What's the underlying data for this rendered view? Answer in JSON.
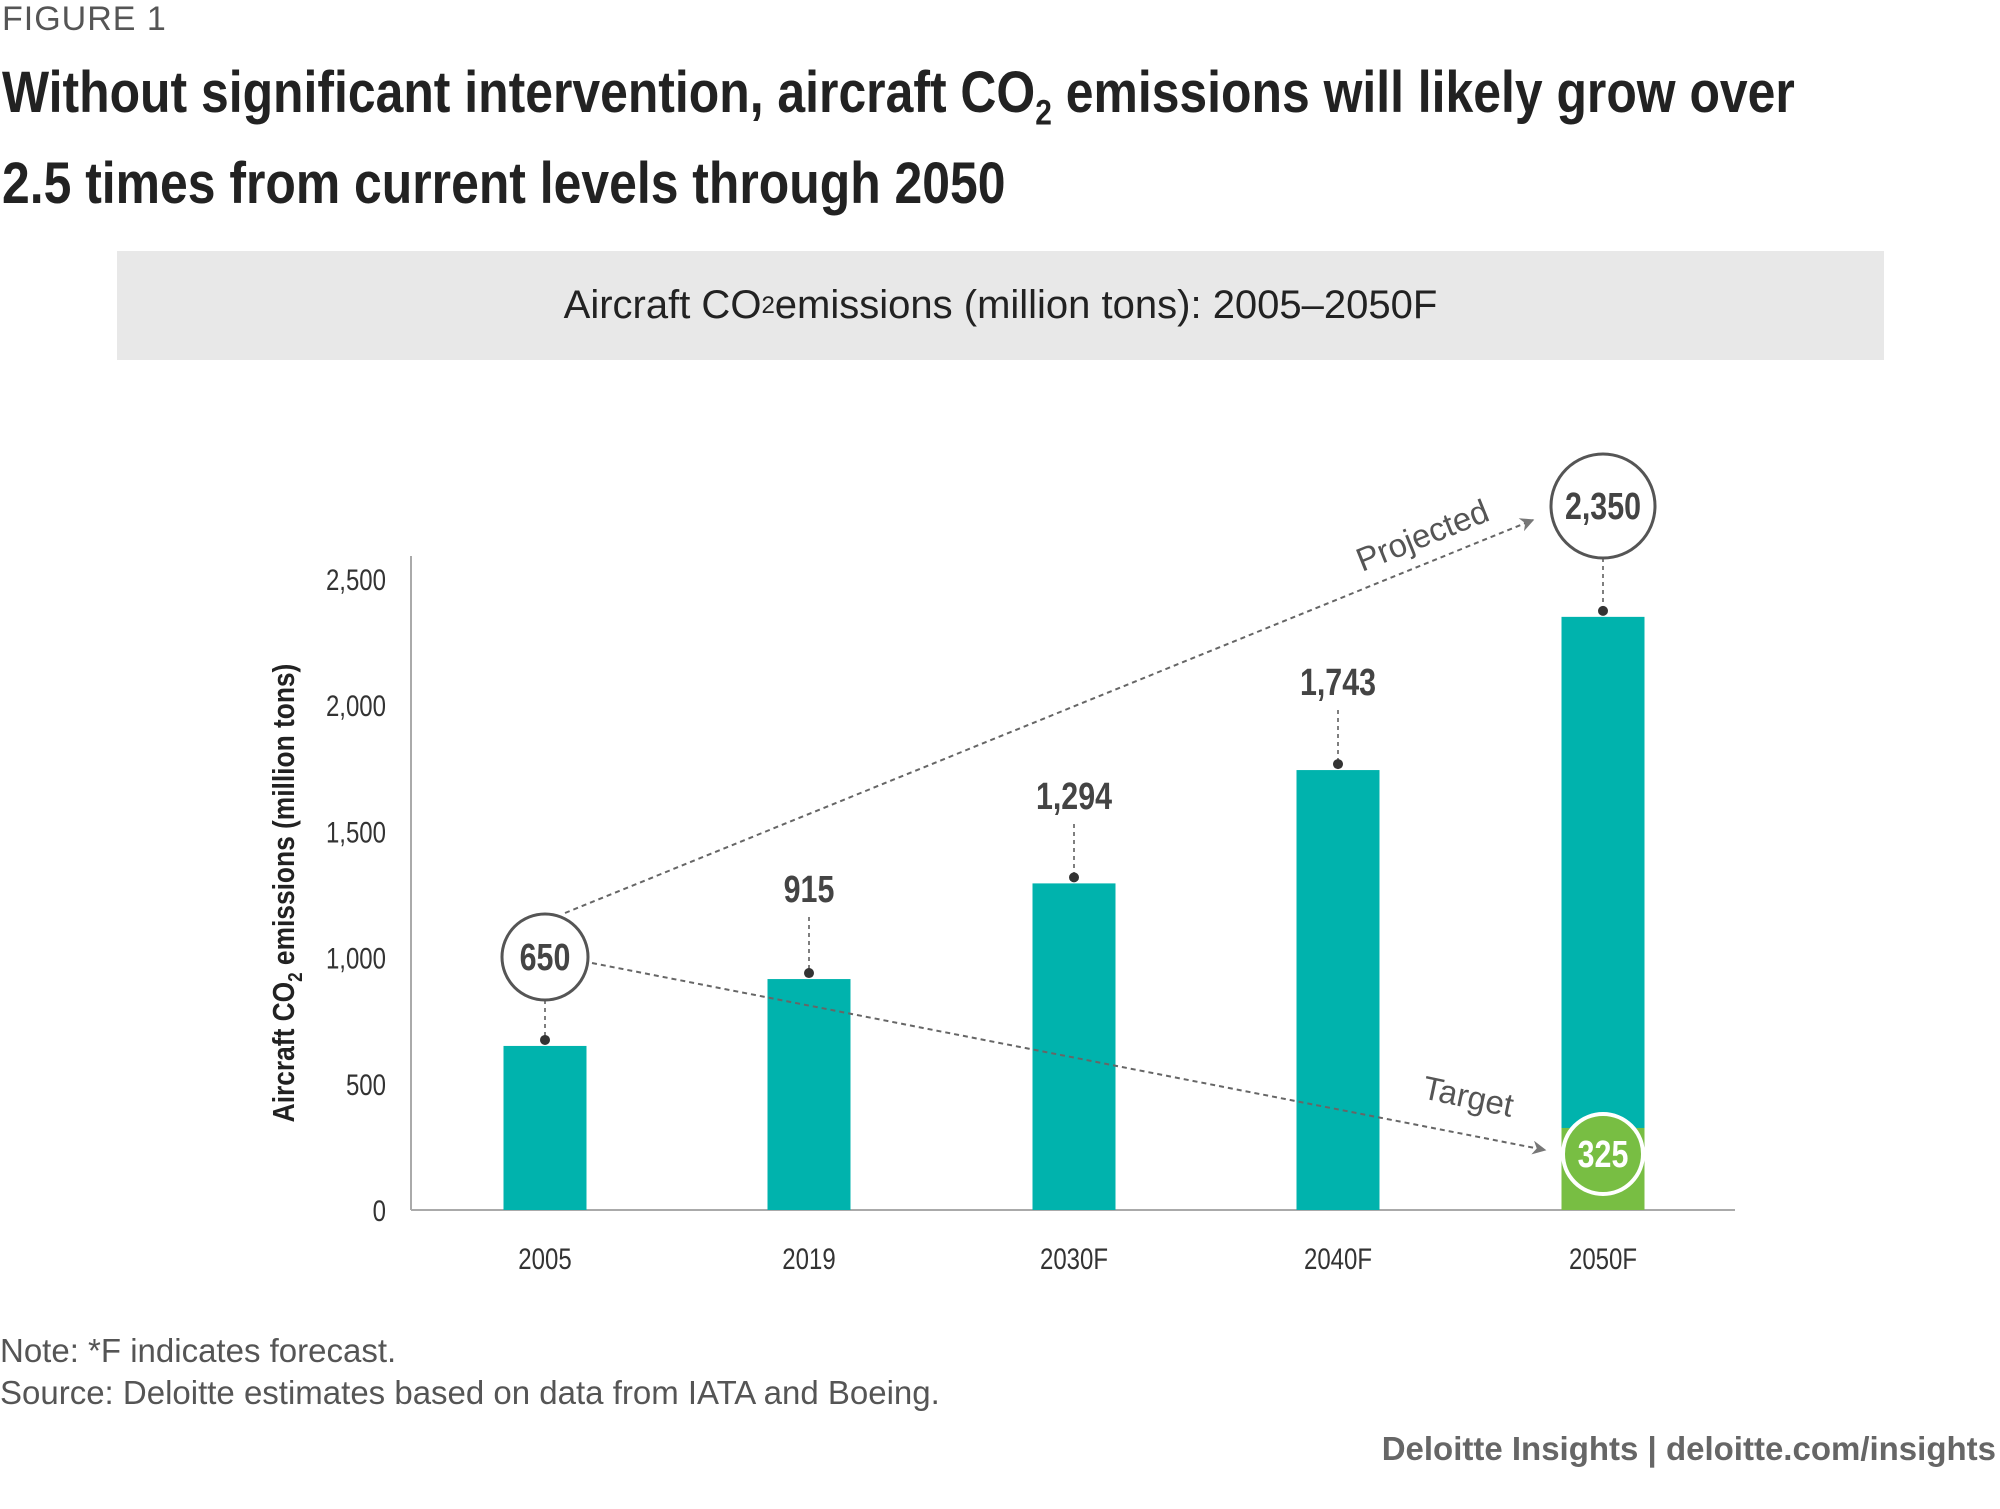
{
  "figure_label": "FIGURE 1",
  "title": {
    "part1": "Without significant intervention, aircraft CO",
    "sub": "2",
    "part2": " emissions will likely grow over 2.5 times from current levels through 2050"
  },
  "subtitle": {
    "part1": "Aircraft CO",
    "sub": "2",
    "part2": " emissions (million tons): 2005–2050F"
  },
  "chart_data": {
    "type": "bar",
    "categories": [
      "2005",
      "2019",
      "2030F",
      "2040F",
      "2050F"
    ],
    "values": [
      650,
      915,
      1294,
      1743,
      2350
    ],
    "data_labels": [
      "650",
      "915",
      "1,294",
      "1,743",
      "2,350"
    ],
    "target": {
      "category": "2050F",
      "value": 325,
      "label": "325"
    },
    "ylabel": {
      "part1": "Aircraft CO",
      "sub": "2",
      "part2": " emissions (million tons)"
    },
    "ylim": [
      0,
      2500
    ],
    "yticks": [
      0,
      500,
      1000,
      1500,
      2000,
      2500
    ],
    "ytick_labels": [
      "0",
      "500",
      "1,000",
      "1,500",
      "2,000",
      "2,500"
    ],
    "annotations": {
      "projected": "Projected",
      "target": "Target"
    },
    "grid": false,
    "colors": {
      "bar": "#00b3ad",
      "target": "#78be43",
      "axis": "#aaaaaa",
      "annotation": "#666666"
    }
  },
  "notes": {
    "note": "Note: *F indicates forecast.",
    "source": "Source: Deloitte estimates based on data from IATA and Boeing."
  },
  "footer": "Deloitte Insights | deloitte.com/insights"
}
